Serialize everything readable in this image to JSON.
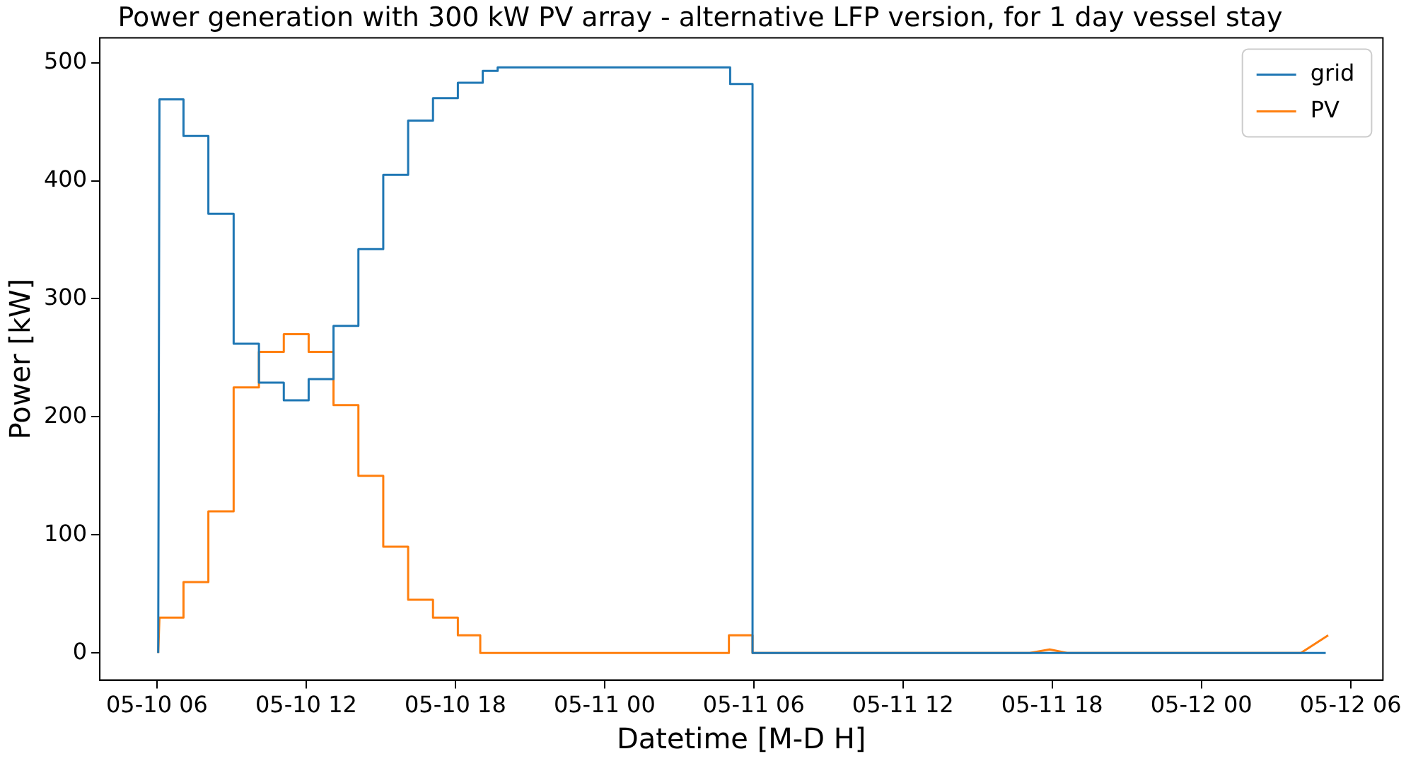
{
  "chart_data": {
    "type": "line",
    "title": "Power generation with 300 kW PV array - alternative LFP version, for 1 day vessel stay",
    "xlabel": "Datetime [M-D H]",
    "ylabel": "Power [kW]",
    "xlim": [
      "--05-10T03:42",
      "--05-12T07:18"
    ],
    "xticks": [
      {
        "value": "--05-10T06:00",
        "label": "05-10 06"
      },
      {
        "value": "--05-10T12:00",
        "label": "05-10 12"
      },
      {
        "value": "--05-10T18:00",
        "label": "05-10 18"
      },
      {
        "value": "--05-11T00:00",
        "label": "05-11 00"
      },
      {
        "value": "--05-11T06:00",
        "label": "05-11 06"
      },
      {
        "value": "--05-11T12:00",
        "label": "05-11 12"
      },
      {
        "value": "--05-11T18:00",
        "label": "05-11 18"
      },
      {
        "value": "--05-12T00:00",
        "label": "05-12 00"
      },
      {
        "value": "--05-12T06:00",
        "label": "05-12 06"
      }
    ],
    "ylim": [
      -23,
      521
    ],
    "yticks": [
      0,
      100,
      200,
      300,
      400,
      500
    ],
    "grid": false,
    "legend": "top right",
    "marker": "none",
    "line_style": "solid",
    "series": [
      {
        "name": "grid",
        "color": "#1f77b4",
        "x": [
          "--05-10T06:03",
          "--05-10T06:06",
          "--05-10T07:04",
          "--05-10T07:04",
          "--05-10T08:04",
          "--05-10T08:04",
          "--05-10T09:05",
          "--05-10T09:05",
          "--05-10T10:06",
          "--05-10T10:06",
          "--05-10T11:06",
          "--05-10T11:06",
          "--05-10T12:06",
          "--05-10T12:06",
          "--05-10T13:06",
          "--05-10T13:06",
          "--05-10T14:06",
          "--05-10T14:06",
          "--05-10T15:06",
          "--05-10T15:06",
          "--05-10T16:06",
          "--05-10T16:06",
          "--05-10T17:06",
          "--05-10T17:06",
          "--05-10T18:06",
          "--05-10T18:06",
          "--05-10T19:06",
          "--05-10T19:06",
          "--05-10T19:42",
          "--05-10T19:42",
          "--05-11T05:03",
          "--05-11T05:03",
          "--05-11T05:57",
          "--05-11T05:57",
          "--05-12T05:00"
        ],
        "values": [
          0,
          469,
          469,
          438,
          438,
          372,
          372,
          262,
          262,
          229,
          229,
          214,
          214,
          232,
          232,
          277,
          277,
          342,
          342,
          405,
          405,
          451,
          451,
          470,
          470,
          483,
          483,
          493,
          493,
          496,
          496,
          482,
          482,
          0,
          0
        ]
      },
      {
        "name": "PV",
        "color": "#ff7f0e",
        "x": [
          "--05-10T06:03",
          "--05-10T06:06",
          "--05-10T07:04",
          "--05-10T07:04",
          "--05-10T08:04",
          "--05-10T08:04",
          "--05-10T09:05",
          "--05-10T09:05",
          "--05-10T10:06",
          "--05-10T10:06",
          "--05-10T11:06",
          "--05-10T11:06",
          "--05-10T12:06",
          "--05-10T12:06",
          "--05-10T13:06",
          "--05-10T13:06",
          "--05-10T14:06",
          "--05-10T14:06",
          "--05-10T15:06",
          "--05-10T15:06",
          "--05-10T16:06",
          "--05-10T16:06",
          "--05-10T17:06",
          "--05-10T17:06",
          "--05-10T18:06",
          "--05-10T18:06",
          "--05-10T19:00",
          "--05-10T19:00",
          "--05-11T05:00",
          "--05-11T05:00",
          "--05-11T05:57",
          "--05-11T05:57",
          "--05-11T17:06",
          "--05-11T17:54",
          "--05-11T18:36",
          "--05-12T04:00",
          "--05-12T05:06"
        ],
        "values": [
          0,
          30,
          30,
          60,
          60,
          120,
          120,
          225,
          225,
          255,
          255,
          270,
          270,
          255,
          255,
          210,
          210,
          150,
          150,
          90,
          90,
          45,
          45,
          30,
          30,
          15,
          15,
          0,
          0,
          15,
          15,
          0,
          0,
          3,
          0,
          0,
          15
        ]
      }
    ]
  }
}
